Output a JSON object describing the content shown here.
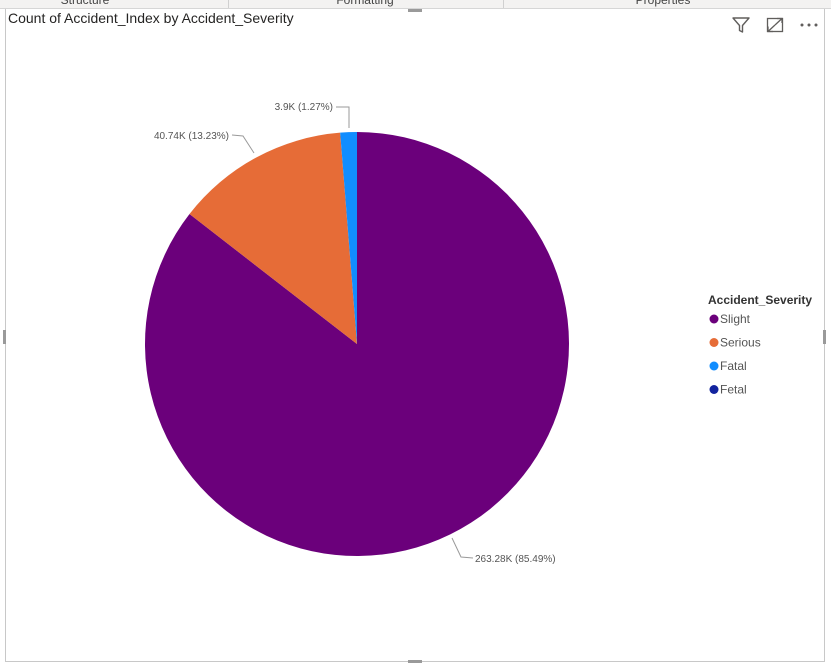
{
  "ribbon": {
    "tabs": [
      "Structure",
      "Formatting",
      "Properties"
    ]
  },
  "visual": {
    "title": "Count of Accident_Index by Accident_Severity",
    "toolbar_icons": [
      "filter-icon",
      "focus-mode-icon",
      "more-options-icon"
    ]
  },
  "chart_data": {
    "type": "pie",
    "title": "Count of Accident_Index by Accident_Severity",
    "legend_title": "Accident_Severity",
    "legend_position": "right",
    "categories": [
      "Slight",
      "Serious",
      "Fatal",
      "Fetal"
    ],
    "values": [
      263280,
      40740,
      3900,
      0
    ],
    "percents": [
      85.49,
      13.23,
      1.27,
      0
    ],
    "colors": [
      "#6b007b",
      "#e66c37",
      "#118dff",
      "#12239e"
    ],
    "data_labels": [
      "263.28K (85.49%)",
      "40.74K (13.23%)",
      "3.9K (1.27%)",
      ""
    ]
  }
}
